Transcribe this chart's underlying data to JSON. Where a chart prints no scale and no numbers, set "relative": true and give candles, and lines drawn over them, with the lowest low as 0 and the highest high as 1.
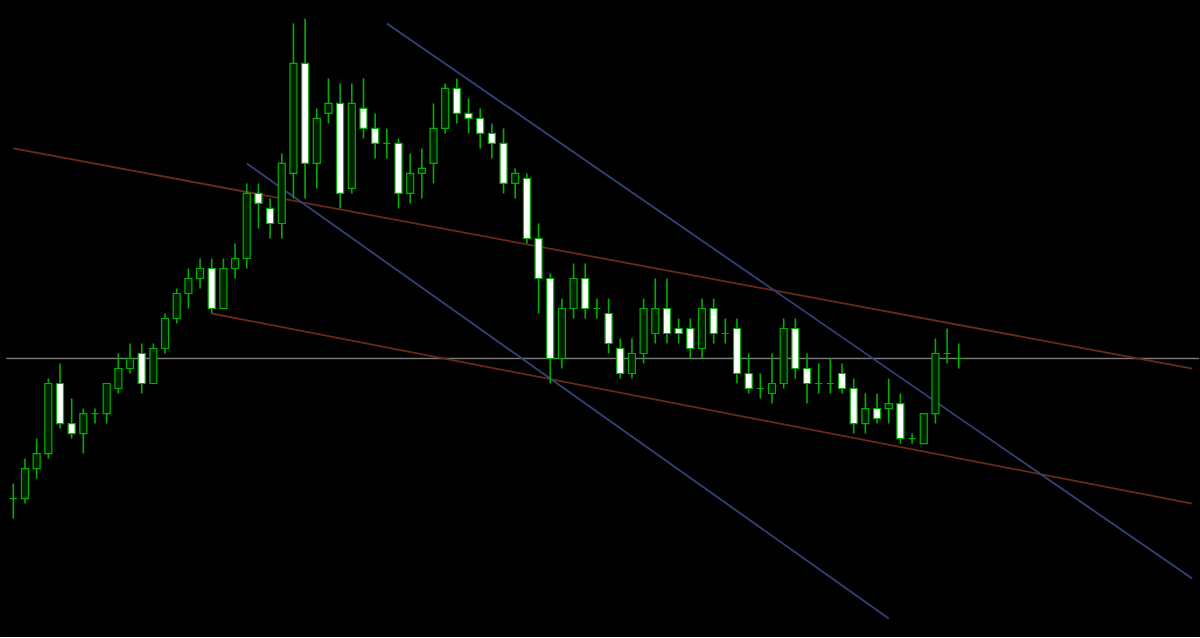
{
  "chart_data": {
    "type": "candlestick",
    "relative": true,
    "color": "#00b000",
    "categories": [
      null,
      null,
      null,
      null,
      null,
      null,
      null,
      null,
      null,
      null,
      null,
      null,
      null,
      null,
      null,
      null,
      null,
      null,
      null,
      null,
      null,
      null,
      null,
      null,
      null,
      null,
      null,
      null,
      null,
      null,
      null,
      null,
      null,
      null,
      null,
      null,
      null,
      null,
      null,
      null,
      null,
      null,
      null,
      null,
      null,
      null,
      null,
      null,
      null,
      null,
      null,
      null,
      null,
      null,
      null,
      null,
      null,
      null,
      null,
      null,
      null,
      null,
      null,
      null,
      null,
      null,
      null,
      null,
      null,
      null,
      null,
      null,
      null,
      null,
      null,
      null,
      null,
      null,
      null,
      null,
      null,
      null,
      null,
      null,
      null,
      null,
      null,
      null,
      null,
      null,
      null,
      null,
      null,
      null,
      null,
      null,
      null,
      null,
      null,
      null,
      null,
      null
    ],
    "ohlc": [
      [
        0.04,
        0.07,
        0,
        0.04
      ],
      [
        0.04,
        0.12,
        0.03,
        0.1
      ],
      [
        0.1,
        0.16,
        0.08,
        0.13
      ],
      [
        0.13,
        0.28,
        0.12,
        0.27
      ],
      [
        0.27,
        0.31,
        0.18,
        0.19
      ],
      [
        0.19,
        0.24,
        0.16,
        0.17
      ],
      [
        0.17,
        0.22,
        0.13,
        0.21
      ],
      [
        0.21,
        0.22,
        0.19,
        0.21
      ],
      [
        0.21,
        0.27,
        0.19,
        0.27
      ],
      [
        0.26,
        0.33,
        0.25,
        0.3
      ],
      [
        0.3,
        0.35,
        0.29,
        0.32
      ],
      [
        0.33,
        0.35,
        0.25,
        0.27
      ],
      [
        0.27,
        0.35,
        0.27,
        0.34
      ],
      [
        0.34,
        0.41,
        0.33,
        0.4
      ],
      [
        0.4,
        0.46,
        0.39,
        0.45
      ],
      [
        0.45,
        0.5,
        0.42,
        0.48
      ],
      [
        0.48,
        0.52,
        0.46,
        0.5
      ],
      [
        0.5,
        0.52,
        0.41,
        0.42
      ],
      [
        0.42,
        0.52,
        0.42,
        0.5
      ],
      [
        0.5,
        0.55,
        0.48,
        0.52
      ],
      [
        0.52,
        0.67,
        0.5,
        0.65
      ],
      [
        0.65,
        0.67,
        0.58,
        0.63
      ],
      [
        0.62,
        0.64,
        0.56,
        0.59
      ],
      [
        0.59,
        0.73,
        0.56,
        0.71
      ],
      [
        0.69,
        0.99,
        0.64,
        0.91
      ],
      [
        0.91,
        1.0,
        0.64,
        0.71
      ],
      [
        0.71,
        0.82,
        0.66,
        0.8
      ],
      [
        0.81,
        0.88,
        0.79,
        0.83
      ],
      [
        0.83,
        0.87,
        0.62,
        0.65
      ],
      [
        0.66,
        0.87,
        0.65,
        0.83
      ],
      [
        0.82,
        0.88,
        0.76,
        0.78
      ],
      [
        0.78,
        0.81,
        0.72,
        0.75
      ],
      [
        0.75,
        0.78,
        0.72,
        0.75
      ],
      [
        0.75,
        0.76,
        0.62,
        0.65
      ],
      [
        0.65,
        0.73,
        0.63,
        0.69
      ],
      [
        0.69,
        0.74,
        0.64,
        0.7
      ],
      [
        0.71,
        0.83,
        0.67,
        0.78
      ],
      [
        0.78,
        0.87,
        0.77,
        0.86
      ],
      [
        0.86,
        0.88,
        0.79,
        0.81
      ],
      [
        0.81,
        0.84,
        0.77,
        0.8
      ],
      [
        0.8,
        0.82,
        0.74,
        0.77
      ],
      [
        0.77,
        0.79,
        0.72,
        0.75
      ],
      [
        0.75,
        0.78,
        0.65,
        0.67
      ],
      [
        0.67,
        0.7,
        0.64,
        0.69
      ],
      [
        0.68,
        0.69,
        0.55,
        0.56
      ],
      [
        0.56,
        0.59,
        0.41,
        0.48
      ],
      [
        0.48,
        0.49,
        0.27,
        0.32
      ],
      [
        0.32,
        0.44,
        0.3,
        0.42
      ],
      [
        0.42,
        0.51,
        0.4,
        0.48
      ],
      [
        0.48,
        0.51,
        0.4,
        0.42
      ],
      [
        0.42,
        0.44,
        0.4,
        0.42
      ],
      [
        0.41,
        0.44,
        0.33,
        0.35
      ],
      [
        0.34,
        0.36,
        0.28,
        0.29
      ],
      [
        0.29,
        0.36,
        0.28,
        0.33
      ],
      [
        0.33,
        0.44,
        0.31,
        0.42
      ],
      [
        0.37,
        0.48,
        0.35,
        0.42
      ],
      [
        0.42,
        0.48,
        0.35,
        0.37
      ],
      [
        0.38,
        0.4,
        0.35,
        0.37
      ],
      [
        0.38,
        0.4,
        0.32,
        0.34
      ],
      [
        0.34,
        0.44,
        0.32,
        0.42
      ],
      [
        0.42,
        0.44,
        0.35,
        0.37
      ],
      [
        0.37,
        0.4,
        0.35,
        0.37
      ],
      [
        0.38,
        0.4,
        0.27,
        0.29
      ],
      [
        0.29,
        0.33,
        0.25,
        0.26
      ],
      [
        0.26,
        0.29,
        0.24,
        0.26
      ],
      [
        0.25,
        0.33,
        0.23,
        0.27
      ],
      [
        0.27,
        0.4,
        0.26,
        0.38
      ],
      [
        0.38,
        0.4,
        0.28,
        0.3
      ],
      [
        0.3,
        0.33,
        0.23,
        0.27
      ],
      [
        0.27,
        0.31,
        0.25,
        0.27
      ],
      [
        0.27,
        0.32,
        0.25,
        0.27
      ],
      [
        0.29,
        0.31,
        0.25,
        0.26
      ],
      [
        0.26,
        0.28,
        0.17,
        0.19
      ],
      [
        0.19,
        0.25,
        0.17,
        0.22
      ],
      [
        0.22,
        0.25,
        0.19,
        0.2
      ],
      [
        0.22,
        0.28,
        0.19,
        0.23
      ],
      [
        0.23,
        0.25,
        0.15,
        0.16
      ],
      [
        0.16,
        0.17,
        0.15,
        0.16
      ],
      [
        0.15,
        0.21,
        0.15,
        0.21
      ],
      [
        0.21,
        0.36,
        0.19,
        0.33
      ],
      [
        0.33,
        0.38,
        0.31,
        0.33
      ],
      [
        0.32,
        0.35,
        0.3,
        0.32
      ],
      null,
      null,
      null,
      null,
      null,
      null,
      null,
      null,
      null,
      null,
      null,
      null,
      null,
      null,
      null,
      null,
      null,
      null,
      null,
      null
    ],
    "series": [
      {
        "type": "line",
        "color": "#6b2a1a",
        "values": [
          0.74,
          null,
          null,
          null,
          null,
          null,
          null,
          null,
          null,
          null,
          null,
          null,
          null,
          null,
          null,
          null,
          null,
          null,
          null,
          null,
          null,
          null,
          null,
          null,
          null,
          null,
          null,
          null,
          null,
          null,
          null,
          null,
          null,
          null,
          null,
          null,
          null,
          null,
          null,
          null,
          null,
          null,
          null,
          null,
          null,
          null,
          null,
          null,
          null,
          null,
          null,
          null,
          null,
          null,
          null,
          null,
          null,
          null,
          null,
          null,
          null,
          null,
          null,
          null,
          null,
          null,
          null,
          null,
          null,
          null,
          null,
          null,
          null,
          null,
          null,
          null,
          null,
          null,
          null,
          null,
          null,
          null,
          null,
          null,
          null,
          null,
          null,
          null,
          null,
          null,
          null,
          null,
          null,
          null,
          null,
          null,
          null,
          null,
          null,
          null,
          null,
          0.3
        ]
      },
      {
        "type": "line",
        "color": "#6b2a1a",
        "values": [
          null,
          null,
          null,
          null,
          null,
          null,
          null,
          null,
          null,
          null,
          null,
          null,
          null,
          null,
          null,
          null,
          null,
          0.41,
          null,
          null,
          null,
          null,
          null,
          null,
          null,
          null,
          null,
          null,
          null,
          null,
          null,
          null,
          null,
          null,
          null,
          null,
          null,
          null,
          null,
          null,
          null,
          null,
          null,
          null,
          null,
          null,
          null,
          null,
          null,
          null,
          null,
          null,
          null,
          null,
          null,
          null,
          null,
          null,
          null,
          null,
          null,
          null,
          null,
          null,
          null,
          null,
          null,
          null,
          null,
          null,
          null,
          null,
          null,
          null,
          null,
          null,
          null,
          null,
          null,
          null,
          null,
          null,
          null,
          null,
          null,
          null,
          null,
          null,
          null,
          null,
          null,
          null,
          null,
          null,
          null,
          null,
          null,
          null,
          null,
          null,
          null,
          0.03
        ]
      },
      {
        "type": "line",
        "color": "#34427a",
        "values": [
          null,
          null,
          null,
          null,
          null,
          null,
          null,
          null,
          null,
          null,
          null,
          null,
          null,
          null,
          null,
          null,
          null,
          null,
          null,
          null,
          null,
          null,
          null,
          null,
          null,
          null,
          null,
          null,
          null,
          null,
          null,
          null,
          0.99,
          null,
          null,
          null,
          null,
          null,
          null,
          null,
          null,
          null,
          null,
          null,
          null,
          null,
          null,
          null,
          null,
          null,
          null,
          null,
          null,
          null,
          null,
          null,
          null,
          null,
          null,
          null,
          null,
          null,
          null,
          null,
          null,
          null,
          null,
          null,
          null,
          null,
          null,
          null,
          null,
          null,
          null,
          null,
          null,
          null,
          null,
          null,
          null,
          null,
          null,
          null,
          null,
          null,
          null,
          null,
          null,
          null,
          null,
          null,
          null,
          null,
          null,
          null,
          null,
          null,
          null,
          null,
          null,
          -0.12
        ]
      },
      {
        "type": "line",
        "color": "#34427a",
        "values": [
          null,
          null,
          null,
          null,
          null,
          null,
          null,
          null,
          null,
          null,
          null,
          null,
          null,
          null,
          null,
          null,
          null,
          null,
          null,
          null,
          0.71,
          null,
          null,
          null,
          null,
          null,
          null,
          null,
          null,
          null,
          null,
          null,
          null,
          null,
          null,
          null,
          null,
          null,
          null,
          null,
          null,
          null,
          null,
          null,
          null,
          null,
          null,
          null,
          null,
          null,
          null,
          null,
          null,
          null,
          null,
          null,
          null,
          null,
          null,
          null,
          null,
          null,
          null,
          null,
          null,
          null,
          null,
          null,
          null,
          null,
          null,
          null,
          null,
          null,
          null,
          -0.2,
          null,
          null,
          null,
          null,
          null,
          null,
          null,
          null,
          null,
          null,
          null,
          null,
          null,
          null,
          null,
          null,
          null,
          null,
          null,
          null,
          null,
          null,
          null,
          null,
          null,
          null
        ]
      }
    ],
    "ref_lines": [
      {
        "axis": "y",
        "value": 0.32,
        "color": "#7a7a7a"
      }
    ]
  }
}
